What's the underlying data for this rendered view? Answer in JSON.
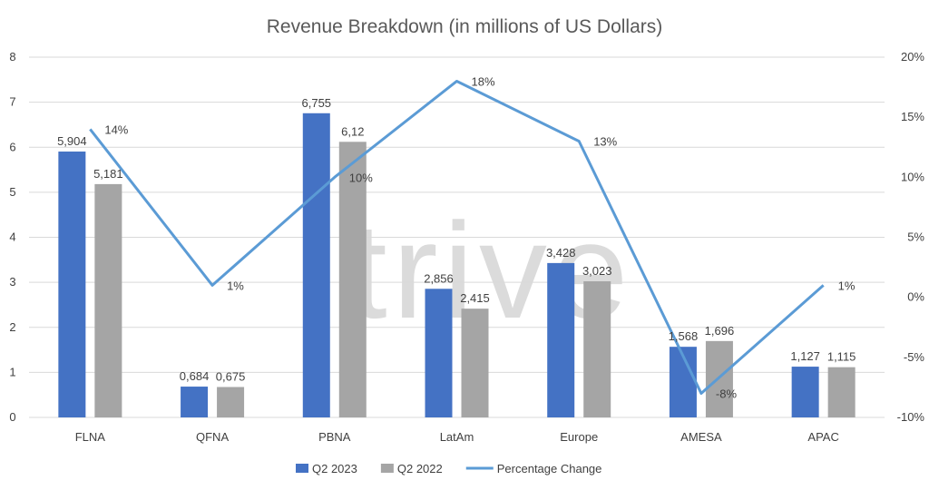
{
  "watermark": "trive",
  "chart_data": {
    "type": "bar",
    "title": "Revenue Breakdown (in millions of US Dollars)",
    "categories": [
      "FLNA",
      "QFNA",
      "PBNA",
      "LatAm",
      "Europe",
      "AMESA",
      "APAC"
    ],
    "series": [
      {
        "name": "Q2 2023",
        "type": "bar",
        "axis": "left",
        "color": "#4472c4",
        "values": [
          5.904,
          0.684,
          6.755,
          2.856,
          3.428,
          1.568,
          1.127
        ],
        "labels": [
          "5,904",
          "0,684",
          "6,755",
          "2,856",
          "3,428",
          "1,568",
          "1,127"
        ]
      },
      {
        "name": "Q2 2022",
        "type": "bar",
        "axis": "left",
        "color": "#a5a5a5",
        "values": [
          5.181,
          0.675,
          6.12,
          2.415,
          3.023,
          1.696,
          1.115
        ],
        "labels": [
          "5,181",
          "0,675",
          "6,12",
          "2,415",
          "3,023",
          "1,696",
          "1,115"
        ]
      },
      {
        "name": "Percentage Change",
        "type": "line",
        "axis": "right",
        "color": "#5b9bd5",
        "values": [
          14,
          1,
          10,
          18,
          13,
          -8,
          1
        ],
        "labels": [
          "14%",
          "1%",
          "10%",
          "18%",
          "13%",
          "-8%",
          "1%"
        ]
      }
    ],
    "left_axis": {
      "min": 0,
      "max": 8,
      "step": 1,
      "ticks": [
        "0",
        "1",
        "2",
        "3",
        "4",
        "5",
        "6",
        "7",
        "8"
      ]
    },
    "right_axis": {
      "min": -10,
      "max": 20,
      "step": 5,
      "ticks": [
        "-10%",
        "-5%",
        "0%",
        "5%",
        "10%",
        "15%",
        "20%"
      ]
    },
    "grid": true,
    "legend": "bottom"
  }
}
